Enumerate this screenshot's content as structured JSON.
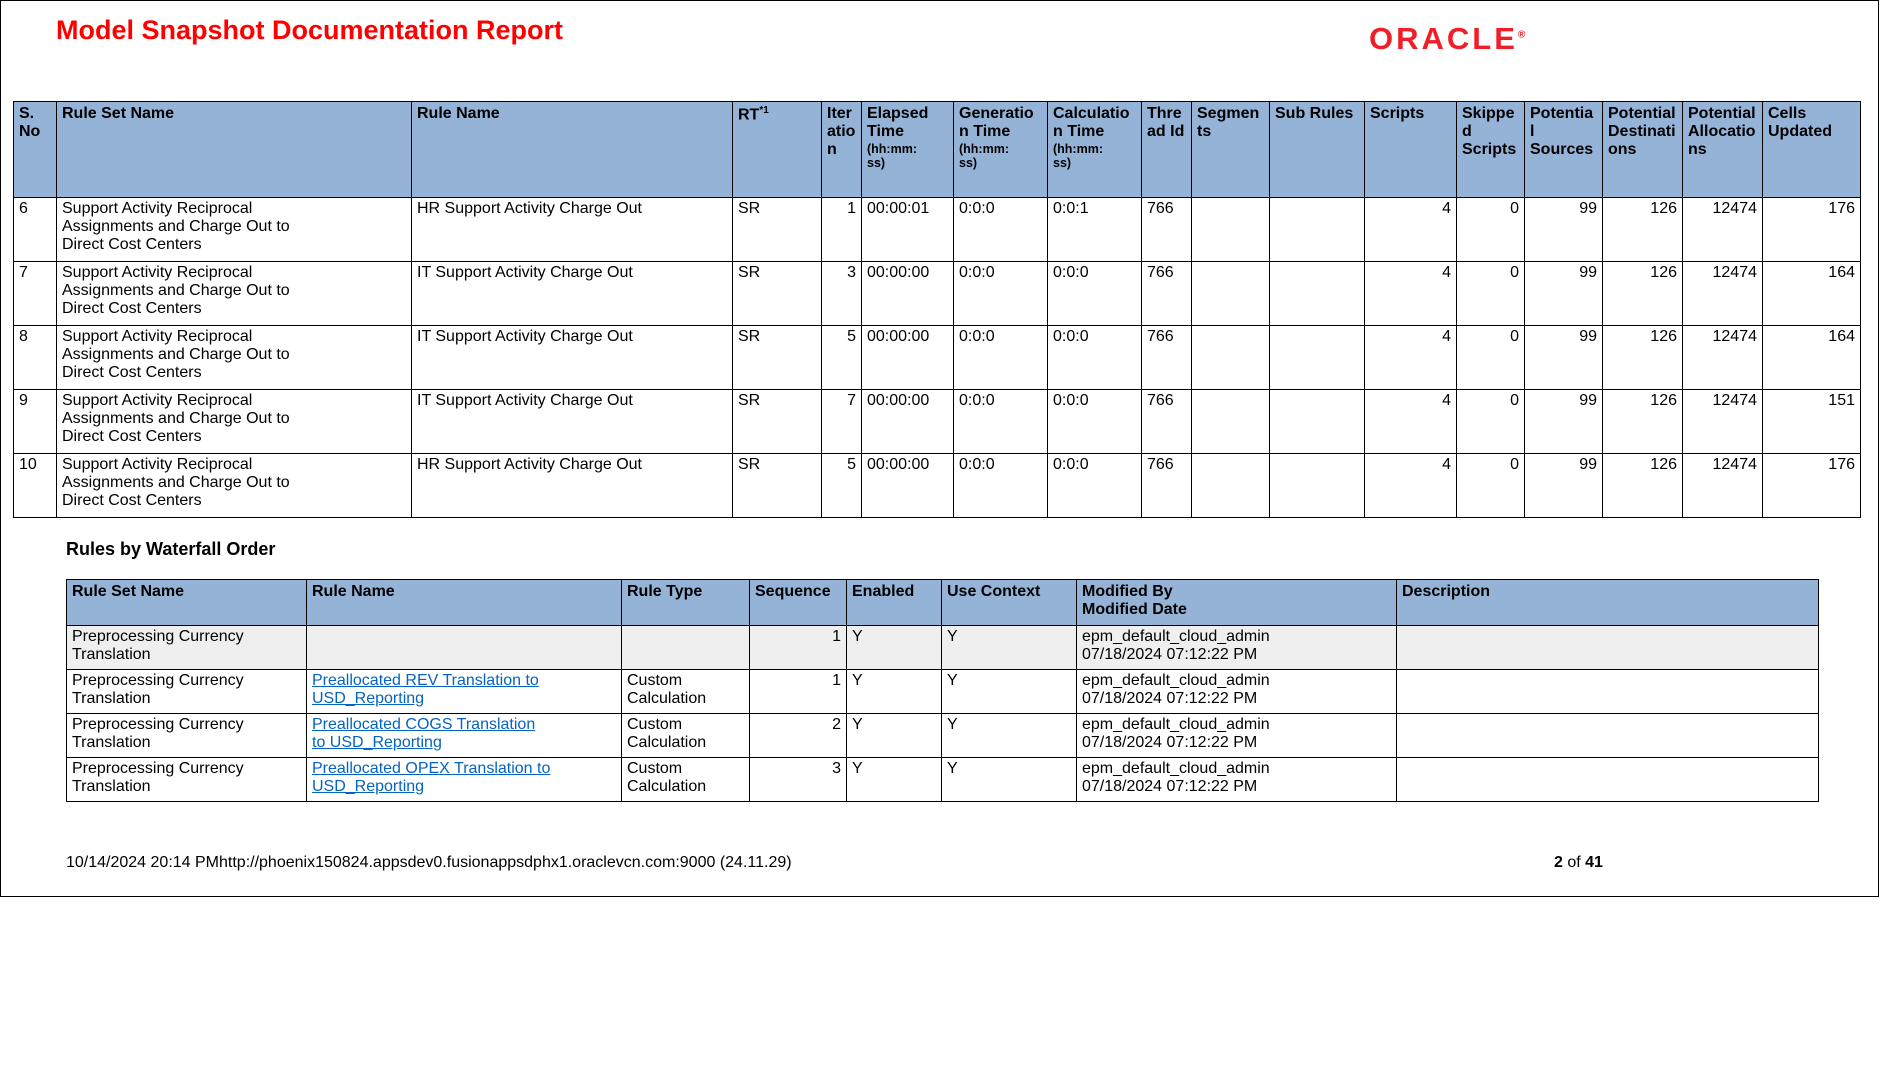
{
  "page": {
    "title": "Model Snapshot Documentation Report",
    "logo": "ORACLE",
    "logo_reg": "®"
  },
  "colors": {
    "header_bg": "#95B3D7",
    "title_red": "#FF0000",
    "oracle_red": "#F01E28",
    "link_blue": "#0563C1",
    "shaded_row": "#EFEFEF"
  },
  "stats_table": {
    "widths": [
      43,
      355,
      321,
      89,
      40,
      92,
      94,
      94,
      50,
      78,
      95,
      92,
      68,
      78,
      80,
      80,
      98
    ],
    "aligns": [
      "left",
      "left",
      "left",
      "left",
      "right",
      "left",
      "left",
      "left",
      "left",
      "left",
      "left",
      "right",
      "right",
      "right",
      "right",
      "right",
      "right"
    ],
    "headers": [
      {
        "label": "S. No"
      },
      {
        "label": "Rule Set Name"
      },
      {
        "label": "Rule Name"
      },
      {
        "label": "RT",
        "sup": "*1"
      },
      {
        "label": "Iteration"
      },
      {
        "label": "Elapsed Time",
        "sub": "(hh:mm:\nss)"
      },
      {
        "label": "Generation Time",
        "sub": "(hh:mm:\nss)"
      },
      {
        "label": "Calculation Time",
        "sub": "(hh:mm:\nss)"
      },
      {
        "label": "Thread Id"
      },
      {
        "label": "Segments"
      },
      {
        "label": "Sub Rules"
      },
      {
        "label": "Scripts"
      },
      {
        "label": "Skipped Scripts"
      },
      {
        "label": "Potential Sources"
      },
      {
        "label": "Potential Destinations"
      },
      {
        "label": "Potential Allocations"
      },
      {
        "label": "Cells Updated"
      }
    ],
    "rows": [
      [
        "6",
        "Support Activity Reciprocal\nAssignments and Charge Out to\nDirect Cost Centers",
        "HR Support Activity Charge Out",
        "SR",
        "1",
        "00:00:01",
        "0:0:0",
        "0:0:1",
        "766",
        "",
        "",
        "4",
        "0",
        "99",
        "126",
        "12474",
        "176"
      ],
      [
        "7",
        "Support Activity Reciprocal\nAssignments and Charge Out to\nDirect Cost Centers",
        "IT Support Activity Charge Out",
        "SR",
        "3",
        "00:00:00",
        "0:0:0",
        "0:0:0",
        "766",
        "",
        "",
        "4",
        "0",
        "99",
        "126",
        "12474",
        "164"
      ],
      [
        "8",
        "Support Activity Reciprocal\nAssignments and Charge Out to\nDirect Cost Centers",
        "IT Support Activity Charge Out",
        "SR",
        "5",
        "00:00:00",
        "0:0:0",
        "0:0:0",
        "766",
        "",
        "",
        "4",
        "0",
        "99",
        "126",
        "12474",
        "164"
      ],
      [
        "9",
        "Support Activity Reciprocal\nAssignments and Charge Out to\nDirect Cost Centers",
        "IT Support Activity Charge Out",
        "SR",
        "7",
        "00:00:00",
        "0:0:0",
        "0:0:0",
        "766",
        "",
        "",
        "4",
        "0",
        "99",
        "126",
        "12474",
        "151"
      ],
      [
        "10",
        "Support Activity Reciprocal\nAssignments and Charge Out to\nDirect Cost Centers",
        "HR Support Activity Charge Out",
        "SR",
        "5",
        "00:00:00",
        "0:0:0",
        "0:0:0",
        "766",
        "",
        "",
        "4",
        "0",
        "99",
        "126",
        "12474",
        "176"
      ]
    ]
  },
  "waterfall": {
    "section_title": "Rules by Waterfall Order",
    "widths": [
      240,
      315,
      128,
      97,
      95,
      135,
      320,
      422
    ],
    "aligns": [
      "left",
      "left",
      "left",
      "right",
      "left",
      "left",
      "left",
      "left"
    ],
    "headers": [
      "Rule Set Name",
      "Rule Name",
      "Rule Type",
      "Sequence",
      "Enabled",
      "Use Context",
      "Modified By\nModified Date",
      "Description"
    ],
    "rows": [
      {
        "shaded": true,
        "link": false,
        "cells": [
          "Preprocessing Currency\nTranslation",
          "",
          "",
          "1",
          "Y",
          "Y",
          "epm_default_cloud_admin\n07/18/2024 07:12:22 PM",
          ""
        ]
      },
      {
        "shaded": false,
        "link": true,
        "cells": [
          "Preprocessing Currency\nTranslation",
          "Preallocated REV Translation to\nUSD_Reporting",
          "Custom\nCalculation",
          "1",
          "Y",
          "Y",
          "epm_default_cloud_admin\n07/18/2024 07:12:22 PM",
          ""
        ]
      },
      {
        "shaded": false,
        "link": true,
        "cells": [
          "Preprocessing Currency\nTranslation",
          "Preallocated COGS Translation\nto USD_Reporting",
          "Custom\nCalculation",
          "2",
          "Y",
          "Y",
          "epm_default_cloud_admin\n07/18/2024 07:12:22 PM",
          ""
        ]
      },
      {
        "shaded": false,
        "link": true,
        "cells": [
          "Preprocessing Currency\nTranslation",
          "Preallocated OPEX Translation to\nUSD_Reporting",
          "Custom\nCalculation",
          "3",
          "Y",
          "Y",
          "epm_default_cloud_admin\n07/18/2024 07:12:22 PM",
          ""
        ]
      }
    ]
  },
  "footer": {
    "left": "10/14/2024 20:14 PMhttp://phoenix150824.appsdev0.fusionappsdphx1.oraclevcn.com:9000 (24.11.29)",
    "page": "2",
    "of": "of",
    "total": "41"
  }
}
